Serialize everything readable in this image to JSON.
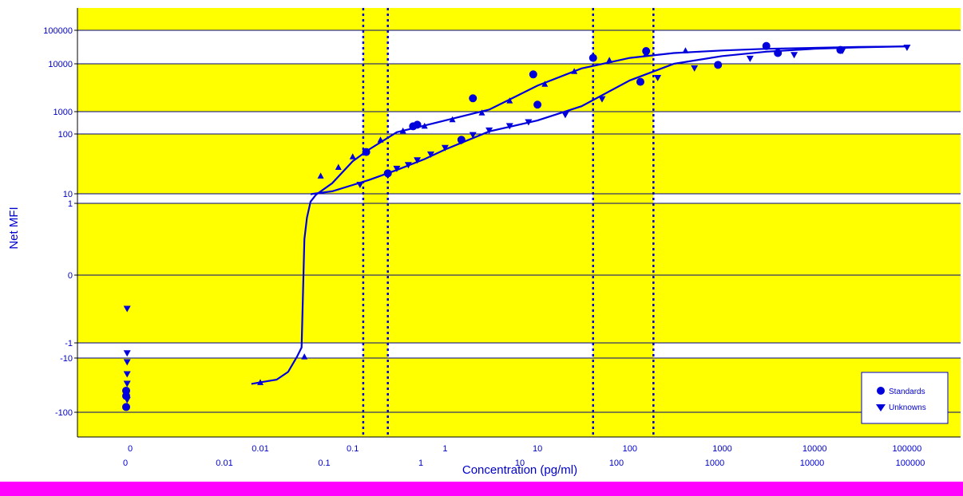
{
  "colors": {
    "band": "#ffff00",
    "plot_bg": "#ffffff",
    "series": "#0000dd",
    "axis_text": "#0000cc",
    "footer_bar": "#ff00ff"
  },
  "chart_data": {
    "type": "scatter",
    "xlabel": "Concentration (pg/ml)",
    "ylabel": "Net MFI",
    "x_scale": "log",
    "y_scale": "symlog",
    "xlim": [
      0.001,
      200000
    ],
    "x_ticks_upper": [
      "0",
      "0.01",
      "0.1",
      "1",
      "10",
      "100",
      "1000",
      "10000",
      "100000"
    ],
    "x_ticks_lower": [
      "0",
      "0.01",
      "0.1",
      "1",
      "10",
      "100",
      "1000",
      "10000",
      "100000"
    ],
    "y_ticks": [
      "100000",
      "10000",
      "1000",
      "100",
      "10",
      "1",
      "0",
      "-1",
      "-10",
      "-100"
    ],
    "grid": true,
    "legend_position": "bottom-right",
    "legend": [
      "Standards",
      "Unknowns"
    ],
    "highlight_ranges": [
      [
        0.13,
        0.24
      ],
      [
        40,
        180
      ]
    ],
    "curves": [
      {
        "x": [
          0.008,
          0.01,
          0.015,
          0.02,
          0.025,
          0.028,
          0.03,
          0.032,
          0.035,
          0.04,
          0.06,
          0.1,
          0.15,
          0.3,
          0.6,
          1,
          3,
          10,
          30,
          100,
          300,
          1000,
          3000,
          10000,
          30000,
          100000
        ],
        "y": [
          -30,
          -28,
          -25,
          -18,
          -8,
          -2,
          0.5,
          0.8,
          1.5,
          8,
          15,
          35,
          55,
          120,
          240,
          400,
          1100,
          3500,
          8000,
          15000,
          21000,
          25000,
          28000,
          30000,
          32000,
          33000
        ]
      },
      {
        "x": [
          0.035,
          0.06,
          0.1,
          0.15,
          0.3,
          0.6,
          1,
          3,
          10,
          30,
          100,
          300,
          1000,
          3000,
          10000,
          30000,
          100000
        ],
        "y": [
          9,
          11,
          14,
          17,
          25,
          38,
          55,
          130,
          400,
          1300,
          4500,
          10000,
          17000,
          23000,
          28000,
          31000,
          33000
        ]
      }
    ],
    "series": [
      {
        "name": "Standards",
        "marker": "circle",
        "x": [
          0.14,
          0.45,
          0.5,
          2,
          9,
          40,
          150,
          3000,
          0.24,
          1.5,
          10,
          130,
          900,
          4000,
          19000,
          -0.05,
          -0.05,
          -0.05
        ],
        "y": [
          50,
          220,
          260,
          1900,
          6000,
          15000,
          24000,
          34000,
          22,
          80,
          1400,
          4200,
          9500,
          21000,
          26000,
          -40,
          -50,
          -80
        ]
      },
      {
        "name": "Unknowns",
        "marker": "triangle-down",
        "x": [
          0.12,
          0.24,
          0.3,
          0.4,
          0.5,
          0.7,
          1,
          1.5,
          2,
          3,
          5,
          8,
          20,
          50,
          200,
          500,
          2000,
          6000,
          20000,
          100000,
          -0.03,
          -0.03,
          -0.03,
          -0.03,
          -0.03,
          -0.03
        ],
        "y": [
          14,
          20,
          26,
          30,
          36,
          45,
          58,
          75,
          95,
          140,
          220,
          330,
          700,
          1800,
          5000,
          8000,
          14000,
          18000,
          24000,
          30000,
          -0.5,
          -5,
          -12,
          -20,
          -30,
          -60
        ]
      },
      {
        "name": "",
        "marker": "triangle-up",
        "x": [
          0.01,
          0.03,
          0.045,
          0.07,
          0.1,
          0.2,
          0.35,
          0.6,
          1.2,
          2.5,
          5,
          12,
          25,
          60,
          150,
          400
        ],
        "y": [
          -28,
          -8,
          20,
          28,
          42,
          80,
          140,
          230,
          450,
          900,
          1700,
          3800,
          7000,
          13000,
          20000,
          25000
        ]
      }
    ]
  }
}
